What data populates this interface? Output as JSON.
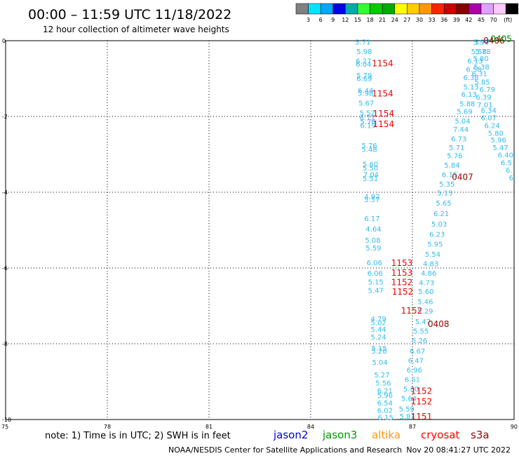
{
  "header": {
    "title": "00:00 – 11:59 UTC 11/18/2022",
    "subtitle": "12 hour collection of altimeter wave heights"
  },
  "colorbar": {
    "labels": [
      "3",
      "6",
      "9",
      "12",
      "15",
      "18",
      "21",
      "24",
      "27",
      "30",
      "33",
      "36",
      "39",
      "42",
      "45",
      "70"
    ],
    "unit": "(ft)",
    "colors": [
      "#808080",
      "#00e5ff",
      "#00a8ff",
      "#0000e6",
      "#00aaaa",
      "#33ff33",
      "#00cc00",
      "#00aa00",
      "#ffff00",
      "#ffcc00",
      "#ff9900",
      "#ff2200",
      "#cc0000",
      "#880000",
      "#aa00aa",
      "#e0a0ff",
      "#ffc8ff",
      "#000000"
    ]
  },
  "footer": {
    "note": "note: 1) Time is in UTC; 2) SWH is in feet",
    "satellites": [
      {
        "name": "jason2",
        "color": "#0000e6"
      },
      {
        "name": "jason3",
        "color": "#009900"
      },
      {
        "name": "altika",
        "color": "#ff9900"
      },
      {
        "name": "cryosat",
        "color": "#ff0000"
      },
      {
        "name": "s3a",
        "color": "#990000"
      }
    ],
    "credit": "NOAA/NESDIS Center for Satellite Applications and Research",
    "timestamp": "Nov 20 08:41:27 UTC 2022"
  },
  "chart_data": {
    "type": "scatter",
    "title": "00:00 – 11:59 UTC 11/18/2022",
    "subtitle": "12 hour collection of altimeter wave heights",
    "x_ticks": [
      "75",
      "78",
      "81",
      "84",
      "87",
      "90"
    ],
    "y_ticks": [
      "0",
      "-2",
      "-4",
      "-6",
      "-8",
      "-10"
    ],
    "xlim": [
      75,
      90
    ],
    "ylim": [
      -10,
      0
    ],
    "grid": true,
    "value_color": "#33bbee",
    "series": [
      {
        "name": "track-a",
        "points": [
          {
            "x": 85.54,
            "y": -0.05,
            "v": "5.71"
          },
          {
            "x": 85.58,
            "y": -0.3,
            "v": "5.98"
          },
          {
            "x": 85.56,
            "y": -0.55,
            "v": "6.27"
          },
          {
            "x": 85.56,
            "y": -0.63,
            "v": "6.04"
          },
          {
            "x": 85.58,
            "y": -0.93,
            "v": "5.79"
          },
          {
            "x": 85.58,
            "y": -1.01,
            "v": "6.69"
          },
          {
            "x": 85.62,
            "y": -1.32,
            "v": "6.44"
          },
          {
            "x": 85.62,
            "y": -1.4,
            "v": "5.98"
          },
          {
            "x": 85.64,
            "y": -1.66,
            "v": "5.67"
          },
          {
            "x": 85.67,
            "y": -1.92,
            "v": "5.52"
          },
          {
            "x": 85.67,
            "y": -2.05,
            "v": "6.71"
          },
          {
            "x": 85.69,
            "y": -2.15,
            "v": "5.76"
          },
          {
            "x": 85.69,
            "y": -2.25,
            "v": "6.19"
          },
          {
            "x": 85.73,
            "y": -2.78,
            "v": "5.76"
          },
          {
            "x": 85.73,
            "y": -2.88,
            "v": "5.48"
          },
          {
            "x": 85.76,
            "y": -3.27,
            "v": "5.60"
          },
          {
            "x": 85.76,
            "y": -3.37,
            "v": "5.50"
          },
          {
            "x": 85.78,
            "y": -3.55,
            "v": "7.04"
          },
          {
            "x": 85.76,
            "y": -3.65,
            "v": "5.51"
          },
          {
            "x": 85.81,
            "y": -4.12,
            "v": "4.92"
          },
          {
            "x": 85.81,
            "y": -4.2,
            "v": "5.57"
          },
          {
            "x": 85.81,
            "y": -4.7,
            "v": "6.17"
          },
          {
            "x": 85.85,
            "y": -4.98,
            "v": "4.64"
          },
          {
            "x": 85.83,
            "y": -5.28,
            "v": "5.08"
          },
          {
            "x": 85.85,
            "y": -5.48,
            "v": "5.59"
          },
          {
            "x": 85.88,
            "y": -5.87,
            "v": "6.06"
          },
          {
            "x": 85.9,
            "y": -6.15,
            "v": "6.06"
          },
          {
            "x": 85.92,
            "y": -6.38,
            "v": "5.15"
          },
          {
            "x": 85.92,
            "y": -6.6,
            "v": "5.47"
          },
          {
            "x": 86.0,
            "y": -7.35,
            "v": "4.79"
          },
          {
            "x": 86.0,
            "y": -7.45,
            "v": "5.02"
          },
          {
            "x": 86.0,
            "y": -7.63,
            "v": "5.44"
          },
          {
            "x": 86.0,
            "y": -7.83,
            "v": "5.24"
          },
          {
            "x": 86.02,
            "y": -8.13,
            "v": "5.15"
          },
          {
            "x": 86.02,
            "y": -8.2,
            "v": "5.20"
          },
          {
            "x": 86.04,
            "y": -8.5,
            "v": "5.04"
          },
          {
            "x": 86.1,
            "y": -8.83,
            "v": "5.27"
          },
          {
            "x": 86.14,
            "y": -9.05,
            "v": "5.56"
          },
          {
            "x": 86.19,
            "y": -9.25,
            "v": "6.21"
          },
          {
            "x": 86.19,
            "y": -9.37,
            "v": "5.96"
          },
          {
            "x": 86.19,
            "y": -9.57,
            "v": "6.54"
          },
          {
            "x": 86.19,
            "y": -9.77,
            "v": "6.02"
          },
          {
            "x": 86.21,
            "y": -9.95,
            "v": "6.15"
          },
          {
            "x": 86.31,
            "y": -10.17,
            "v": "5.87"
          },
          {
            "x": 86.27,
            "y": -10.45,
            "v": "6.20"
          },
          {
            "x": 86.27,
            "y": -10.5,
            "v": "5.30"
          }
        ]
      },
      {
        "name": "track-b",
        "points": [
          {
            "x": 89.02,
            "y": -0.05,
            "v": "5.99"
          },
          {
            "x": 89.06,
            "y": -0.05,
            "v": "5.77"
          },
          {
            "x": 88.96,
            "y": -0.3,
            "v": "5.58"
          },
          {
            "x": 89.08,
            "y": -0.3,
            "v": "5.78"
          },
          {
            "x": 89.02,
            "y": -0.48,
            "v": "5.80"
          },
          {
            "x": 88.85,
            "y": -0.55,
            "v": "6.13"
          },
          {
            "x": 89.04,
            "y": -0.7,
            "v": "5.38"
          },
          {
            "x": 88.81,
            "y": -0.77,
            "v": "6.58"
          },
          {
            "x": 88.98,
            "y": -0.88,
            "v": "6.31"
          },
          {
            "x": 88.73,
            "y": -0.98,
            "v": "6.38"
          },
          {
            "x": 89.06,
            "y": -1.1,
            "v": "5.85"
          },
          {
            "x": 88.73,
            "y": -1.23,
            "v": "5.13"
          },
          {
            "x": 89.21,
            "y": -1.3,
            "v": "6.79"
          },
          {
            "x": 88.67,
            "y": -1.43,
            "v": "6.13"
          },
          {
            "x": 89.1,
            "y": -1.5,
            "v": "6.39"
          },
          {
            "x": 88.62,
            "y": -1.68,
            "v": "5.88"
          },
          {
            "x": 89.14,
            "y": -1.7,
            "v": "7.01"
          },
          {
            "x": 88.54,
            "y": -1.88,
            "v": "5.69"
          },
          {
            "x": 89.25,
            "y": -1.85,
            "v": "6.34"
          },
          {
            "x": 88.48,
            "y": -2.13,
            "v": "5.04"
          },
          {
            "x": 89.25,
            "y": -2.05,
            "v": "6.07"
          },
          {
            "x": 89.35,
            "y": -2.25,
            "v": "6.24"
          },
          {
            "x": 88.43,
            "y": -2.35,
            "v": "7.44"
          },
          {
            "x": 89.46,
            "y": -2.45,
            "v": "5.80"
          },
          {
            "x": 88.37,
            "y": -2.6,
            "v": "6.73"
          },
          {
            "x": 89.54,
            "y": -2.63,
            "v": "5.96"
          },
          {
            "x": 88.31,
            "y": -2.83,
            "v": "5.71"
          },
          {
            "x": 89.6,
            "y": -2.83,
            "v": "5.47"
          },
          {
            "x": 88.25,
            "y": -3.05,
            "v": "5.76"
          },
          {
            "x": 89.75,
            "y": -3.03,
            "v": "6.40"
          },
          {
            "x": 88.17,
            "y": -3.3,
            "v": "5.84"
          },
          {
            "x": 89.77,
            "y": -3.23,
            "v": "6.5"
          },
          {
            "x": 88.1,
            "y": -3.55,
            "v": "6.15"
          },
          {
            "x": 89.85,
            "y": -3.43,
            "v": "6."
          },
          {
            "x": 88.02,
            "y": -3.8,
            "v": "5.35"
          },
          {
            "x": 89.91,
            "y": -3.63,
            "v": "6"
          },
          {
            "x": 87.96,
            "y": -4.03,
            "v": "5.13"
          },
          {
            "x": 87.92,
            "y": -4.3,
            "v": "5.65"
          },
          {
            "x": 87.85,
            "y": -4.57,
            "v": "6.21"
          },
          {
            "x": 87.79,
            "y": -4.85,
            "v": "5.03"
          },
          {
            "x": 87.73,
            "y": -5.12,
            "v": "6.23"
          },
          {
            "x": 87.67,
            "y": -5.38,
            "v": "5.95"
          },
          {
            "x": 87.6,
            "y": -5.65,
            "v": "5.54"
          },
          {
            "x": 87.54,
            "y": -5.9,
            "v": "4.83"
          },
          {
            "x": 87.48,
            "y": -6.15,
            "v": "4.86"
          },
          {
            "x": 87.42,
            "y": -6.4,
            "v": "4.73"
          },
          {
            "x": 87.4,
            "y": -6.63,
            "v": "5.60"
          },
          {
            "x": 87.38,
            "y": -6.9,
            "v": "5.46"
          },
          {
            "x": 87.38,
            "y": -7.15,
            "v": "5.29"
          },
          {
            "x": 87.31,
            "y": -7.43,
            "v": "5.47"
          },
          {
            "x": 87.25,
            "y": -7.68,
            "v": "5.55"
          },
          {
            "x": 87.21,
            "y": -7.93,
            "v": "5.26"
          },
          {
            "x": 87.15,
            "y": -8.2,
            "v": "6.67"
          },
          {
            "x": 87.1,
            "y": -8.45,
            "v": "6.47"
          },
          {
            "x": 87.06,
            "y": -8.7,
            "v": "6.96"
          },
          {
            "x": 87.0,
            "y": -8.95,
            "v": "6.51"
          },
          {
            "x": 86.96,
            "y": -9.2,
            "v": "5.80"
          },
          {
            "x": 86.9,
            "y": -9.45,
            "v": "5.64"
          },
          {
            "x": 86.83,
            "y": -9.73,
            "v": "5.59"
          },
          {
            "x": 86.85,
            "y": -9.93,
            "v": "5.81"
          }
        ]
      }
    ],
    "pass_labels": [
      {
        "x": 86.12,
        "y": -0.6,
        "t": "1154",
        "color": "#ee0000"
      },
      {
        "x": 86.12,
        "y": -1.4,
        "t": "1154",
        "color": "#ee0000"
      },
      {
        "x": 86.15,
        "y": -1.93,
        "t": "1154",
        "color": "#ee0000"
      },
      {
        "x": 86.15,
        "y": -2.2,
        "t": "1154",
        "color": "#ee0000"
      },
      {
        "x": 86.69,
        "y": -5.87,
        "t": "1153",
        "color": "#ee0000"
      },
      {
        "x": 86.69,
        "y": -6.13,
        "t": "1153",
        "color": "#ee0000"
      },
      {
        "x": 86.69,
        "y": -6.38,
        "t": "1152",
        "color": "#ee0000"
      },
      {
        "x": 86.71,
        "y": -6.63,
        "t": "1152",
        "color": "#ee0000"
      },
      {
        "x": 86.98,
        "y": -7.13,
        "t": "1152",
        "color": "#ee0000"
      },
      {
        "x": 87.27,
        "y": -9.25,
        "t": "1152",
        "color": "#ee0000"
      },
      {
        "x": 87.27,
        "y": -9.53,
        "t": "1152",
        "color": "#ee0000"
      },
      {
        "x": 87.27,
        "y": -9.93,
        "t": "1151",
        "color": "#ee0000"
      },
      {
        "x": 89.41,
        "y": 0.0,
        "t": "0406",
        "color": "#990000"
      },
      {
        "x": 89.62,
        "y": 0.05,
        "t": "0405",
        "color": "#008800"
      },
      {
        "x": 88.48,
        "y": -3.6,
        "t": "0407",
        "color": "#990000"
      },
      {
        "x": 87.77,
        "y": -7.48,
        "t": "0408",
        "color": "#990000"
      }
    ]
  }
}
